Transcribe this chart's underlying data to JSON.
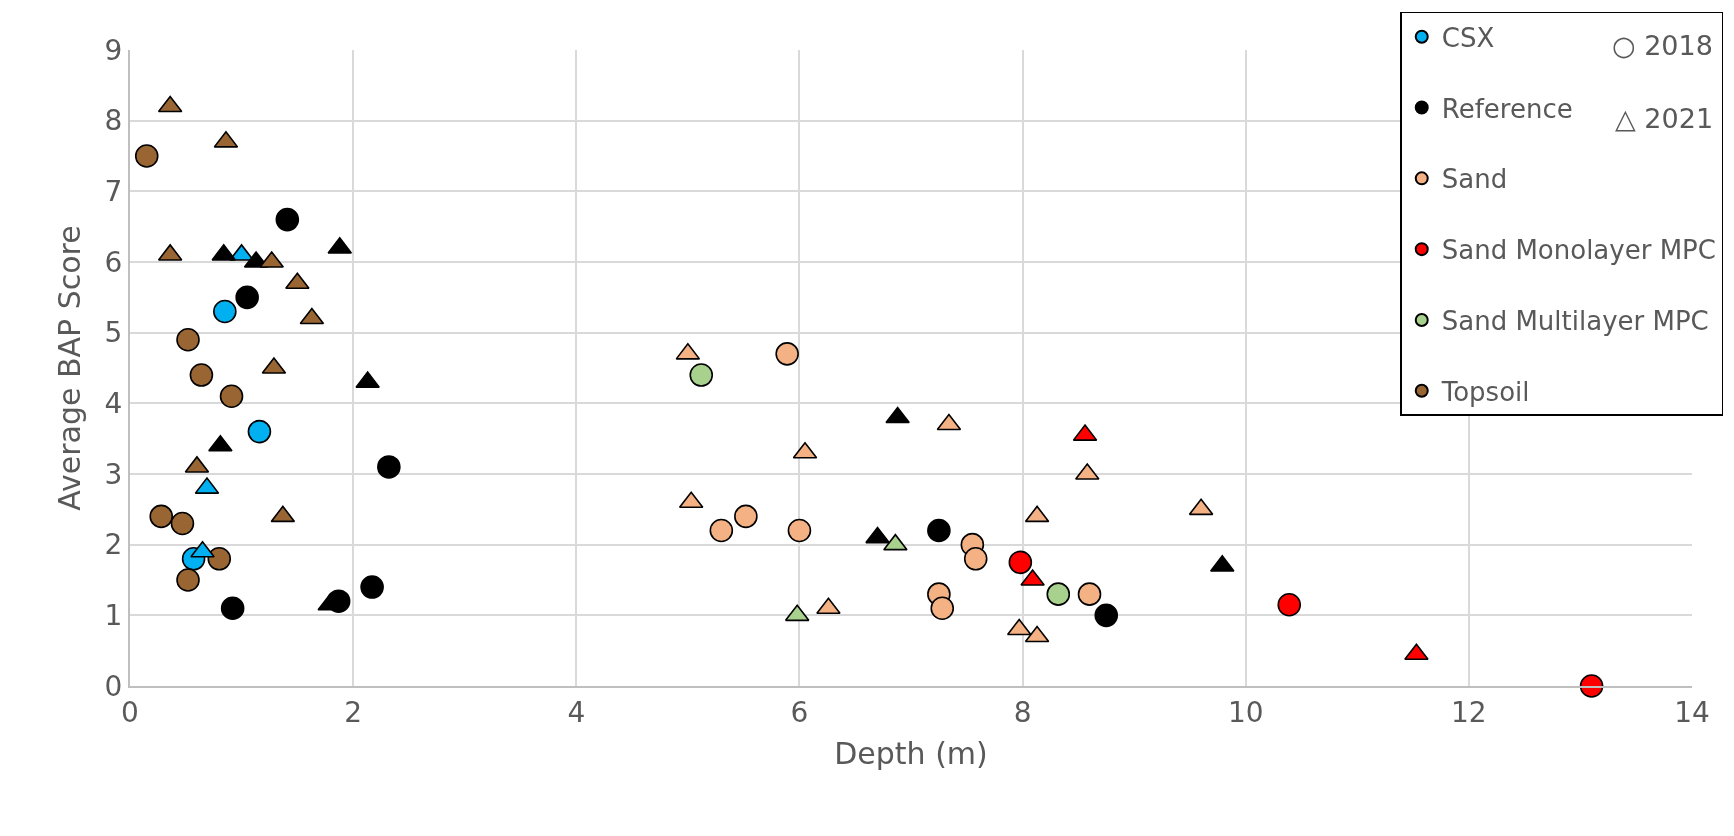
{
  "chart_data": {
    "type": "scatter",
    "xlabel": "Depth (m)",
    "ylabel": "Average BAP Score",
    "xlim": [
      0,
      14
    ],
    "xticks": [
      0,
      2,
      4,
      6,
      8,
      10,
      12,
      14
    ],
    "ylim": [
      0,
      9
    ],
    "yticks": [
      0,
      1,
      2,
      3,
      4,
      5,
      6,
      7,
      8,
      9
    ],
    "grid": true,
    "legend": "top right",
    "annotations": [
      "○ 2018",
      "△ 2021"
    ],
    "series": [
      {
        "name": "CSX",
        "color": "#00b0f0",
        "marker": "circle",
        "x": [
          0.85,
          1.16,
          0.57
        ],
        "values": [
          5.3,
          3.6,
          1.8
        ]
      },
      {
        "name": "Reference",
        "color": "#000000",
        "marker": "circle",
        "x": [
          1.41,
          1.05,
          2.32,
          0.92,
          1.87,
          2.17,
          7.25,
          8.75
        ],
        "values": [
          6.6,
          5.5,
          3.1,
          1.1,
          1.2,
          1.4,
          2.2,
          1.0
        ]
      },
      {
        "name": "Sand",
        "color": "#f4b183",
        "marker": "circle",
        "x": [
          5.89,
          5.3,
          5.52,
          6.0,
          7.55,
          7.58,
          7.25,
          7.28,
          8.6
        ],
        "values": [
          4.7,
          2.2,
          2.4,
          2.2,
          2.0,
          1.8,
          1.3,
          1.1,
          1.3
        ]
      },
      {
        "name": "Sand Monolayer MPC",
        "color": "#ff0000",
        "marker": "circle",
        "x": [
          7.98,
          10.39,
          13.1
        ],
        "values": [
          1.75,
          1.15,
          0
        ]
      },
      {
        "name": "Sand Multilayer MPC",
        "color": "#a9d18e",
        "marker": "circle",
        "x": [
          5.12,
          8.32
        ],
        "values": [
          4.4,
          1.3
        ]
      },
      {
        "name": "Topsoil",
        "color": "#996633",
        "marker": "circle",
        "x": [
          0.15,
          0.52,
          0.64,
          0.91,
          0.28,
          0.47,
          0.8,
          0.52
        ],
        "values": [
          7.5,
          4.9,
          4.4,
          4.1,
          2.4,
          2.3,
          1.8,
          1.5
        ]
      },
      {
        "color": "#00b0f0",
        "marker": "triangle",
        "x": [
          1.0,
          0.69,
          0.65
        ],
        "values": [
          6.1,
          2.8,
          1.9
        ]
      },
      {
        "color": "#000000",
        "marker": "triangle",
        "x": [
          0.84,
          1.13,
          1.88,
          2.13,
          0.81,
          1.79,
          6.88,
          6.7,
          9.79
        ],
        "values": [
          6.1,
          6.0,
          6.2,
          4.3,
          3.4,
          1.15,
          3.8,
          2.1,
          1.7
        ]
      },
      {
        "color": "#f4b183",
        "marker": "triangle",
        "x": [
          5.0,
          5.03,
          6.05,
          7.34,
          6.26,
          8.58,
          8.13,
          9.6,
          7.97,
          8.13
        ],
        "values": [
          4.7,
          2.6,
          3.3,
          3.7,
          1.1,
          3.0,
          2.4,
          2.5,
          0.8,
          0.7
        ]
      },
      {
        "color": "#ff0000",
        "marker": "triangle",
        "x": [
          8.56,
          8.09,
          11.53
        ],
        "values": [
          3.55,
          1.5,
          0.45
        ]
      },
      {
        "color": "#a9d18e",
        "marker": "triangle",
        "x": [
          6.86,
          5.98
        ],
        "values": [
          2.0,
          1.0
        ]
      },
      {
        "color": "#996633",
        "marker": "triangle",
        "x": [
          0.36,
          0.86,
          0.36,
          1.27,
          1.5,
          1.63,
          1.29,
          0.6,
          1.37
        ],
        "values": [
          8.2,
          7.7,
          6.1,
          6.0,
          5.7,
          5.2,
          4.5,
          3.1,
          2.4
        ]
      }
    ]
  }
}
